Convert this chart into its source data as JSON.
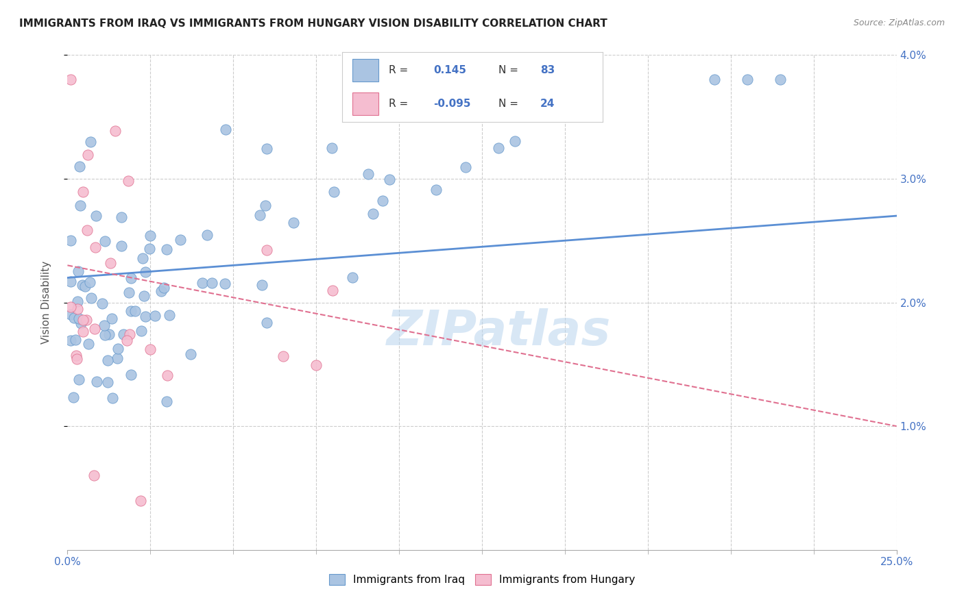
{
  "title": "IMMIGRANTS FROM IRAQ VS IMMIGRANTS FROM HUNGARY VISION DISABILITY CORRELATION CHART",
  "source": "Source: ZipAtlas.com",
  "ylabel": "Vision Disability",
  "xlim": [
    0.0,
    0.25
  ],
  "ylim": [
    0.0,
    0.04
  ],
  "yticks": [
    0.01,
    0.02,
    0.03,
    0.04
  ],
  "ytick_labels": [
    "1.0%",
    "2.0%",
    "3.0%",
    "4.0%"
  ],
  "xtick_minor": [
    0.025,
    0.05,
    0.075,
    0.1,
    0.125,
    0.15,
    0.175,
    0.2,
    0.225,
    0.25
  ],
  "iraq_color": "#aac4e2",
  "iraq_edge_color": "#6699cc",
  "iraq_line_color": "#5b8fd4",
  "hungary_color": "#f5bdd0",
  "hungary_edge_color": "#e07090",
  "hungary_line_color": "#e07090",
  "legend_R_iraq": "0.145",
  "legend_N_iraq": "83",
  "legend_R_hungary": "-0.095",
  "legend_N_hungary": "24",
  "legend_label_iraq": "Immigrants from Iraq",
  "legend_label_hungary": "Immigrants from Hungary",
  "iraq_trend_x0": 0.0,
  "iraq_trend_x1": 0.25,
  "iraq_trend_y0": 0.022,
  "iraq_trend_y1": 0.027,
  "hungary_trend_x0": 0.0,
  "hungary_trend_x1": 0.25,
  "hungary_trend_y0": 0.023,
  "hungary_trend_y1": 0.01,
  "background_color": "#ffffff",
  "grid_color": "#cccccc",
  "title_fontsize": 11,
  "axis_label_fontsize": 11,
  "tick_fontsize": 11
}
